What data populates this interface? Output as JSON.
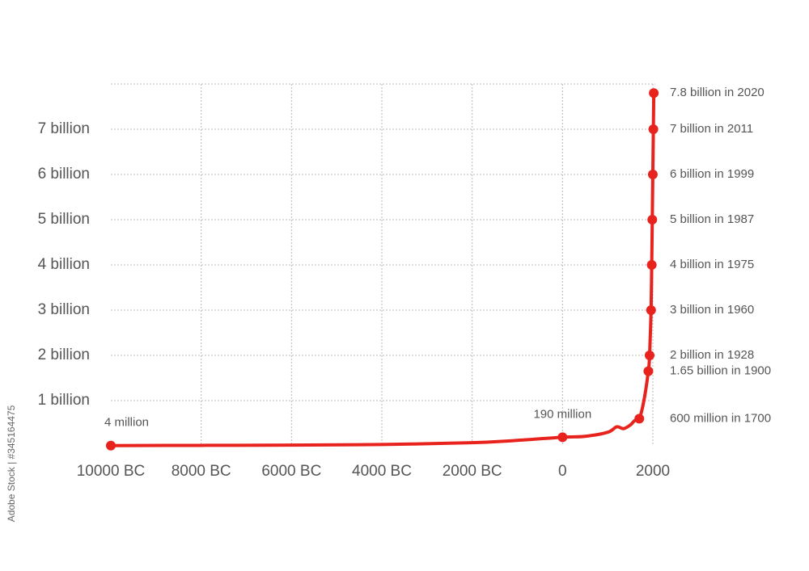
{
  "chart_data": {
    "type": "line",
    "title": "",
    "xlabel": "",
    "ylabel": "",
    "x_ticks": [
      {
        "x": -10000,
        "label": "10000 BC"
      },
      {
        "x": -8000,
        "label": "8000 BC"
      },
      {
        "x": -6000,
        "label": "6000 BC"
      },
      {
        "x": -4000,
        "label": "4000 BC"
      },
      {
        "x": -2000,
        "label": "2000 BC"
      },
      {
        "x": 0,
        "label": "0"
      },
      {
        "x": 2000,
        "label": "2000"
      }
    ],
    "y_ticks": [
      {
        "y": 1000,
        "label": "1 billion"
      },
      {
        "y": 2000,
        "label": "2 billion"
      },
      {
        "y": 3000,
        "label": "3 billion"
      },
      {
        "y": 4000,
        "label": "4 billion"
      },
      {
        "y": 5000,
        "label": "5 billion"
      },
      {
        "y": 6000,
        "label": "6 billion"
      },
      {
        "y": 7000,
        "label": "7 billion"
      }
    ],
    "y_units": "millions",
    "xlim": [
      -10000,
      2000
    ],
    "ylim": [
      0,
      8000
    ],
    "grid": true,
    "line_color": "#e8231e",
    "series": [
      {
        "values": [
          {
            "x": -10000,
            "y": 4
          },
          {
            "x": -8000,
            "y": 10
          },
          {
            "x": -6000,
            "y": 15
          },
          {
            "x": -4000,
            "y": 30
          },
          {
            "x": -2000,
            "y": 70
          },
          {
            "x": -1000,
            "y": 120
          },
          {
            "x": 0,
            "y": 190
          },
          {
            "x": 500,
            "y": 210
          },
          {
            "x": 1000,
            "y": 300
          },
          {
            "x": 1200,
            "y": 420
          },
          {
            "x": 1350,
            "y": 380
          },
          {
            "x": 1500,
            "y": 460
          },
          {
            "x": 1600,
            "y": 560
          },
          {
            "x": 1700,
            "y": 600
          },
          {
            "x": 1800,
            "y": 990
          },
          {
            "x": 1900,
            "y": 1650
          },
          {
            "x": 1928,
            "y": 2000
          },
          {
            "x": 1960,
            "y": 3000
          },
          {
            "x": 1975,
            "y": 4000
          },
          {
            "x": 1987,
            "y": 5000
          },
          {
            "x": 1999,
            "y": 6000
          },
          {
            "x": 2011,
            "y": 7000
          },
          {
            "x": 2020,
            "y": 7800
          }
        ]
      }
    ],
    "labeled_points": [
      {
        "x": -10000,
        "y": 4,
        "label": "4 million",
        "pos": "above"
      },
      {
        "x": 0,
        "y": 190,
        "label": "190 million",
        "pos": "above"
      },
      {
        "x": 1700,
        "y": 600,
        "label": "600 million in 1700",
        "pos": "right"
      },
      {
        "x": 1900,
        "y": 1650,
        "label": "1.65 billion in 1900",
        "pos": "right"
      },
      {
        "x": 1928,
        "y": 2000,
        "label": "2 billion in 1928",
        "pos": "right"
      },
      {
        "x": 1960,
        "y": 3000,
        "label": "3 billion in 1960",
        "pos": "right"
      },
      {
        "x": 1975,
        "y": 4000,
        "label": "4 billion in 1975",
        "pos": "right"
      },
      {
        "x": 1987,
        "y": 5000,
        "label": "5 billion in 1987",
        "pos": "right"
      },
      {
        "x": 1999,
        "y": 6000,
        "label": "6 billion in 1999",
        "pos": "right"
      },
      {
        "x": 2011,
        "y": 7000,
        "label": "7 billion in 2011",
        "pos": "right"
      },
      {
        "x": 2020,
        "y": 7800,
        "label": "7.8 billion in 2020",
        "pos": "right"
      }
    ]
  },
  "watermark": "Adobe Stock | #345164475"
}
